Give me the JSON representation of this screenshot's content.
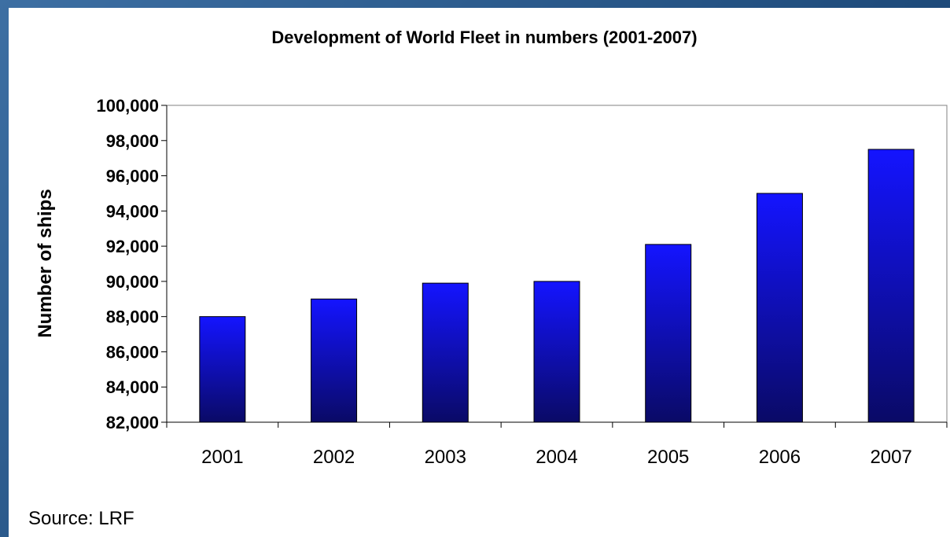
{
  "slide": {
    "source": "Source: LRF"
  },
  "colors": {
    "bar_top": "#1414ff",
    "bar_bottom": "#0a0a66",
    "frame": "#2a5a8c",
    "axis": "#000000"
  },
  "chart_data": {
    "type": "bar",
    "title": "Development of World Fleet in numbers (2001-2007)",
    "xlabel": "",
    "ylabel": "Number of ships",
    "categories": [
      "2001",
      "2002",
      "2003",
      "2004",
      "2005",
      "2006",
      "2007"
    ],
    "values": [
      88000,
      89000,
      89900,
      90000,
      92100,
      95000,
      97500
    ],
    "ylim": [
      82000,
      100000
    ],
    "yticks": [
      82000,
      84000,
      86000,
      88000,
      90000,
      92000,
      94000,
      96000,
      98000,
      100000
    ],
    "ytick_labels": [
      "82,000",
      "84,000",
      "86,000",
      "88,000",
      "90,000",
      "92,000",
      "94,000",
      "96,000",
      "98,000",
      "100,000"
    ],
    "grid": false,
    "legend": "none"
  }
}
